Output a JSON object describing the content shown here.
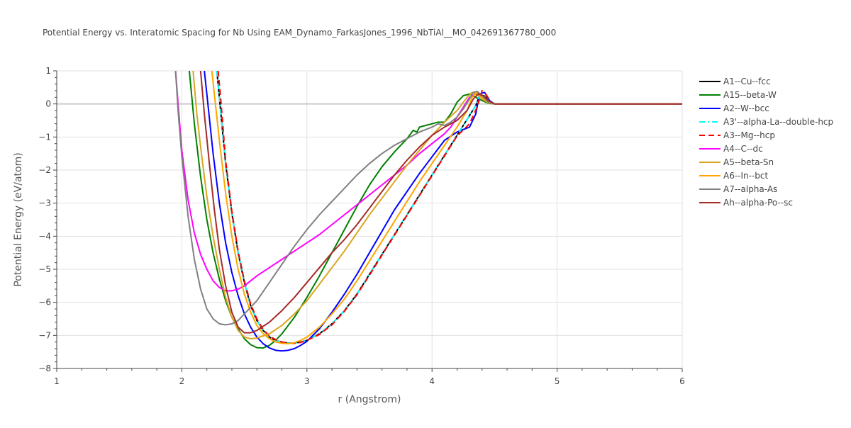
{
  "chart_data": {
    "type": "line",
    "title": "Potential Energy vs. Interatomic Spacing for Nb Using EAM_Dynamo_FarkasJones_1996_NbTiAl__MO_042691367780_000",
    "xlabel": "r (Angstrom)",
    "ylabel": "Potential Energy (eV/atom)",
    "xlim": [
      1,
      6
    ],
    "ylim": [
      -8,
      1
    ],
    "xticks": [
      1,
      2,
      3,
      4,
      5,
      6
    ],
    "yticks": [
      1,
      0,
      -1,
      -2,
      -3,
      -4,
      -5,
      -6,
      -7,
      -8
    ],
    "xtick_labels": [
      "1",
      "2",
      "3",
      "4",
      "5",
      "6"
    ],
    "ytick_labels": [
      "1",
      "0",
      "−1",
      "−2",
      "−3",
      "−4",
      "−5",
      "−6",
      "−7",
      "−8"
    ],
    "grid": true,
    "legend_position": "right",
    "series": [
      {
        "name": "A1--Cu--fcc",
        "color": "#000000",
        "dash": "solid",
        "x": [
          2.28,
          2.3,
          2.35,
          2.4,
          2.45,
          2.5,
          2.55,
          2.6,
          2.65,
          2.7,
          2.75,
          2.8,
          2.85,
          2.9,
          2.95,
          3.0,
          3.1,
          3.2,
          3.3,
          3.4,
          3.5,
          3.6,
          3.7,
          3.8,
          3.9,
          4.0,
          4.1,
          4.2,
          4.3,
          4.35,
          4.38,
          4.42,
          4.46,
          4.5,
          5.0,
          6.0
        ],
        "y": [
          1.0,
          0.2,
          -1.8,
          -3.3,
          -4.5,
          -5.4,
          -6.1,
          -6.55,
          -6.85,
          -7.05,
          -7.15,
          -7.2,
          -7.23,
          -7.23,
          -7.2,
          -7.15,
          -6.95,
          -6.65,
          -6.25,
          -5.75,
          -5.15,
          -4.55,
          -3.95,
          -3.35,
          -2.75,
          -2.15,
          -1.55,
          -0.95,
          -0.35,
          -0.05,
          0.25,
          0.25,
          0.05,
          0.0,
          0.0,
          0.0
        ]
      },
      {
        "name": "A15--beta-W",
        "color": "#008000",
        "dash": "solid",
        "x": [
          2.06,
          2.1,
          2.15,
          2.2,
          2.25,
          2.3,
          2.35,
          2.4,
          2.45,
          2.5,
          2.55,
          2.6,
          2.65,
          2.7,
          2.75,
          2.8,
          2.9,
          3.0,
          3.1,
          3.2,
          3.3,
          3.4,
          3.5,
          3.6,
          3.7,
          3.8,
          3.85,
          3.88,
          3.9,
          3.95,
          4.0,
          4.05,
          4.1,
          4.15,
          4.2,
          4.25,
          4.3,
          4.35,
          4.4,
          4.45,
          4.5,
          5.0,
          6.0
        ],
        "y": [
          1.0,
          -0.6,
          -2.2,
          -3.5,
          -4.5,
          -5.3,
          -5.95,
          -6.45,
          -6.8,
          -7.1,
          -7.28,
          -7.37,
          -7.38,
          -7.3,
          -7.15,
          -6.95,
          -6.45,
          -5.85,
          -5.2,
          -4.5,
          -3.8,
          -3.1,
          -2.45,
          -1.9,
          -1.45,
          -1.05,
          -0.8,
          -0.85,
          -0.7,
          -0.65,
          -0.6,
          -0.55,
          -0.55,
          -0.3,
          0.05,
          0.25,
          0.3,
          0.2,
          0.1,
          0.02,
          0.0,
          0.0,
          0.0
        ]
      },
      {
        "name": "A2--W--bcc",
        "color": "#0000ff",
        "dash": "solid",
        "x": [
          2.18,
          2.2,
          2.25,
          2.3,
          2.35,
          2.4,
          2.45,
          2.5,
          2.55,
          2.6,
          2.65,
          2.7,
          2.75,
          2.8,
          2.85,
          2.9,
          2.95,
          3.0,
          3.1,
          3.2,
          3.3,
          3.4,
          3.5,
          3.6,
          3.7,
          3.8,
          3.9,
          4.0,
          4.1,
          4.2,
          4.3,
          4.35,
          4.38,
          4.42,
          4.46,
          4.5,
          5.0,
          6.0
        ],
        "y": [
          1.0,
          0.3,
          -1.5,
          -3.0,
          -4.2,
          -5.1,
          -5.8,
          -6.35,
          -6.75,
          -7.05,
          -7.25,
          -7.38,
          -7.45,
          -7.47,
          -7.45,
          -7.4,
          -7.3,
          -7.18,
          -6.8,
          -6.3,
          -5.75,
          -5.15,
          -4.5,
          -3.85,
          -3.2,
          -2.65,
          -2.1,
          -1.6,
          -1.1,
          -0.85,
          -0.7,
          -0.3,
          0.3,
          0.35,
          0.1,
          0.0,
          0.0,
          0.0
        ]
      },
      {
        "name": "A3'--alpha-La--double-hcp",
        "color": "#00ffff",
        "dash": "dashdot",
        "x": [
          2.28,
          2.3,
          2.35,
          2.4,
          2.45,
          2.5,
          2.55,
          2.6,
          2.65,
          2.7,
          2.75,
          2.8,
          2.85,
          2.9,
          2.95,
          3.0,
          3.1,
          3.2,
          3.3,
          3.4,
          3.5,
          3.6,
          3.7,
          3.8,
          3.9,
          4.0,
          4.1,
          4.2,
          4.3,
          4.35,
          4.38,
          4.42,
          4.46,
          4.5,
          5.0,
          6.0
        ],
        "y": [
          1.0,
          0.2,
          -1.8,
          -3.3,
          -4.5,
          -5.4,
          -6.1,
          -6.55,
          -6.85,
          -7.05,
          -7.15,
          -7.2,
          -7.23,
          -7.23,
          -7.2,
          -7.15,
          -6.95,
          -6.65,
          -6.25,
          -5.75,
          -5.15,
          -4.55,
          -3.95,
          -3.35,
          -2.75,
          -2.15,
          -1.55,
          -0.95,
          -0.35,
          -0.05,
          0.25,
          0.25,
          0.05,
          0.0,
          0.0,
          0.0
        ]
      },
      {
        "name": "A3--Mg--hcp",
        "color": "#ff0000",
        "dash": "dash",
        "x": [
          2.29,
          2.31,
          2.35,
          2.4,
          2.45,
          2.5,
          2.55,
          2.6,
          2.65,
          2.7,
          2.75,
          2.8,
          2.85,
          2.9,
          2.95,
          3.0,
          3.1,
          3.2,
          3.3,
          3.4,
          3.5,
          3.6,
          3.7,
          3.8,
          3.9,
          4.0,
          4.1,
          4.2,
          4.3,
          4.36,
          4.4,
          4.43,
          4.47,
          4.5,
          5.0,
          6.0
        ],
        "y": [
          1.0,
          0.2,
          -1.7,
          -3.25,
          -4.45,
          -5.35,
          -6.05,
          -6.5,
          -6.82,
          -7.02,
          -7.13,
          -7.2,
          -7.23,
          -7.24,
          -7.21,
          -7.15,
          -6.97,
          -6.68,
          -6.27,
          -5.77,
          -5.18,
          -4.57,
          -3.97,
          -3.37,
          -2.77,
          -2.17,
          -1.57,
          -0.97,
          -0.6,
          -0.1,
          0.4,
          0.3,
          0.05,
          0.0,
          0.0,
          0.0
        ]
      },
      {
        "name": "A4--C--dc",
        "color": "#ff00ff",
        "dash": "solid",
        "x": [
          1.95,
          1.97,
          2.0,
          2.05,
          2.1,
          2.15,
          2.2,
          2.25,
          2.3,
          2.35,
          2.4,
          2.45,
          2.5,
          2.6,
          2.7,
          2.8,
          2.9,
          3.0,
          3.1,
          3.2,
          3.3,
          3.4,
          3.5,
          3.6,
          3.7,
          3.8,
          3.9,
          4.0,
          4.1,
          4.15,
          4.2,
          4.25,
          4.3,
          4.35,
          4.4,
          4.45,
          4.5,
          5.0,
          6.0
        ],
        "y": [
          1.0,
          0.0,
          -1.4,
          -2.9,
          -3.9,
          -4.55,
          -5.0,
          -5.35,
          -5.55,
          -5.65,
          -5.65,
          -5.6,
          -5.5,
          -5.2,
          -4.95,
          -4.7,
          -4.45,
          -4.2,
          -3.95,
          -3.65,
          -3.35,
          -3.05,
          -2.75,
          -2.45,
          -2.15,
          -1.85,
          -1.5,
          -1.2,
          -0.9,
          -0.7,
          -0.4,
          -0.1,
          0.2,
          0.3,
          0.2,
          0.05,
          0.0,
          0.0,
          0.0
        ]
      },
      {
        "name": "A5--beta-Sn",
        "color": "#daa520",
        "dash": "solid",
        "x": [
          2.09,
          2.12,
          2.15,
          2.2,
          2.25,
          2.3,
          2.35,
          2.4,
          2.45,
          2.5,
          2.55,
          2.6,
          2.7,
          2.8,
          2.9,
          3.0,
          3.1,
          3.2,
          3.3,
          3.4,
          3.5,
          3.6,
          3.7,
          3.8,
          3.9,
          4.0,
          4.1,
          4.2,
          4.28,
          4.32,
          4.36,
          4.4,
          4.45,
          4.5,
          5.0,
          6.0
        ],
        "y": [
          1.0,
          -0.3,
          -1.3,
          -2.8,
          -4.0,
          -5.0,
          -5.85,
          -6.45,
          -6.85,
          -7.05,
          -7.1,
          -7.08,
          -6.95,
          -6.7,
          -6.35,
          -5.95,
          -5.45,
          -4.95,
          -4.45,
          -3.9,
          -3.35,
          -2.85,
          -2.35,
          -1.85,
          -1.4,
          -0.95,
          -0.55,
          -0.2,
          0.2,
          0.35,
          0.3,
          0.15,
          0.03,
          0.0,
          0.0,
          0.0
        ]
      },
      {
        "name": "A6--In--bct",
        "color": "#ffa500",
        "dash": "solid",
        "x": [
          2.24,
          2.26,
          2.3,
          2.35,
          2.4,
          2.45,
          2.5,
          2.55,
          2.6,
          2.65,
          2.7,
          2.75,
          2.8,
          2.85,
          2.9,
          2.95,
          3.0,
          3.1,
          3.2,
          3.3,
          3.4,
          3.5,
          3.6,
          3.7,
          3.8,
          3.9,
          4.0,
          4.1,
          4.2,
          4.28,
          4.32,
          4.36,
          4.4,
          4.45,
          4.5,
          5.0,
          6.0
        ],
        "y": [
          1.0,
          0.3,
          -1.1,
          -2.7,
          -4.0,
          -5.0,
          -5.75,
          -6.3,
          -6.7,
          -6.95,
          -7.1,
          -7.2,
          -7.24,
          -7.25,
          -7.22,
          -7.15,
          -7.05,
          -6.75,
          -6.35,
          -5.9,
          -5.35,
          -4.75,
          -4.15,
          -3.55,
          -2.95,
          -2.35,
          -1.8,
          -1.25,
          -0.7,
          -0.2,
          0.2,
          0.35,
          0.2,
          0.05,
          0.0,
          0.0,
          0.0
        ]
      },
      {
        "name": "A7--alpha-As",
        "color": "#808080",
        "dash": "solid",
        "x": [
          1.95,
          1.97,
          2.0,
          2.05,
          2.1,
          2.15,
          2.2,
          2.25,
          2.3,
          2.35,
          2.4,
          2.45,
          2.5,
          2.6,
          2.7,
          2.8,
          2.9,
          3.0,
          3.1,
          3.2,
          3.3,
          3.4,
          3.5,
          3.6,
          3.7,
          3.8,
          3.9,
          4.0,
          4.05,
          4.1,
          4.15,
          4.2,
          4.25,
          4.3,
          4.33,
          4.36,
          4.4,
          4.45,
          4.5,
          5.0,
          6.0
        ],
        "y": [
          1.0,
          -0.2,
          -1.6,
          -3.4,
          -4.7,
          -5.6,
          -6.2,
          -6.5,
          -6.65,
          -6.68,
          -6.65,
          -6.55,
          -6.35,
          -5.95,
          -5.4,
          -4.85,
          -4.3,
          -3.8,
          -3.35,
          -2.95,
          -2.55,
          -2.15,
          -1.8,
          -1.5,
          -1.25,
          -1.05,
          -0.85,
          -0.7,
          -0.6,
          -0.65,
          -0.55,
          -0.4,
          -0.15,
          0.15,
          0.35,
          0.38,
          0.25,
          0.05,
          0.0,
          0.0,
          0.0
        ]
      },
      {
        "name": "Ah--alpha-Po--sc",
        "color": "#a52a2a",
        "dash": "solid",
        "x": [
          2.15,
          2.18,
          2.22,
          2.26,
          2.3,
          2.35,
          2.4,
          2.45,
          2.5,
          2.55,
          2.6,
          2.7,
          2.8,
          2.9,
          3.0,
          3.1,
          3.2,
          3.3,
          3.4,
          3.5,
          3.6,
          3.7,
          3.8,
          3.9,
          4.0,
          4.1,
          4.2,
          4.28,
          4.33,
          4.37,
          4.41,
          4.45,
          4.5,
          5.0,
          6.0
        ],
        "y": [
          1.0,
          -0.3,
          -1.8,
          -3.2,
          -4.4,
          -5.5,
          -6.3,
          -6.75,
          -6.92,
          -6.92,
          -6.85,
          -6.6,
          -6.25,
          -5.85,
          -5.4,
          -4.95,
          -4.5,
          -4.1,
          -3.65,
          -3.15,
          -2.65,
          -2.15,
          -1.7,
          -1.3,
          -0.95,
          -0.7,
          -0.5,
          -0.2,
          0.15,
          0.3,
          0.25,
          0.1,
          0.0,
          0.0,
          0.0
        ]
      }
    ]
  }
}
